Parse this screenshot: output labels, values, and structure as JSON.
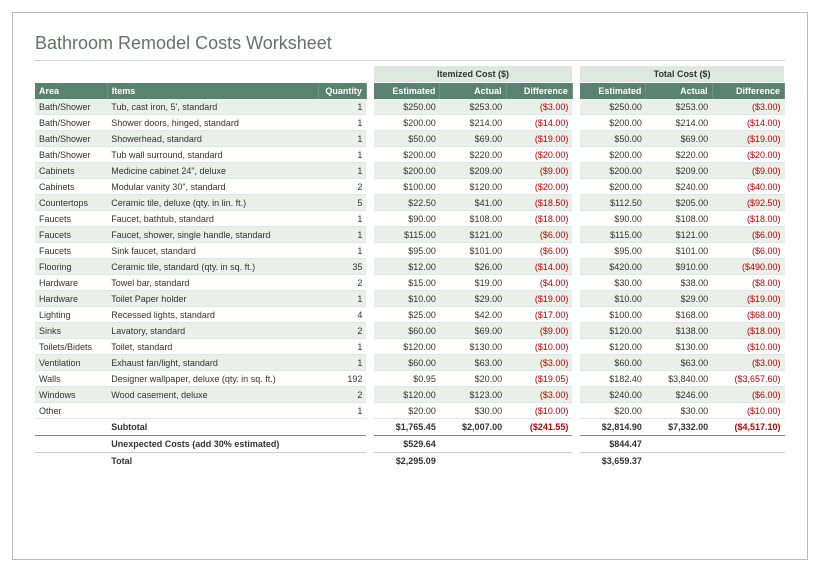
{
  "title": "Bathroom Remodel Costs Worksheet",
  "group_headers": {
    "itemized": "Itemized Cost ($)",
    "total": "Total Cost ($)"
  },
  "columns": {
    "area": "Area",
    "items": "Items",
    "qty": "Quantity",
    "est": "Estimated",
    "act": "Actual",
    "dif": "Difference"
  },
  "rows": [
    {
      "area": "Bath/Shower",
      "item": "Tub, cast iron, 5', standard",
      "qty": 1,
      "iest": "$250.00",
      "iact": "$253.00",
      "idif": "($3.00)",
      "test": "$250.00",
      "tact": "$253.00",
      "tdif": "($3.00)"
    },
    {
      "area": "Bath/Shower",
      "item": "Shower doors, hinged, standard",
      "qty": 1,
      "iest": "$200.00",
      "iact": "$214.00",
      "idif": "($14.00)",
      "test": "$200.00",
      "tact": "$214.00",
      "tdif": "($14.00)"
    },
    {
      "area": "Bath/Shower",
      "item": "Showerhead, standard",
      "qty": 1,
      "iest": "$50.00",
      "iact": "$69.00",
      "idif": "($19.00)",
      "test": "$50.00",
      "tact": "$69.00",
      "tdif": "($19.00)"
    },
    {
      "area": "Bath/Shower",
      "item": "Tub wall surround, standard",
      "qty": 1,
      "iest": "$200.00",
      "iact": "$220.00",
      "idif": "($20.00)",
      "test": "$200.00",
      "tact": "$220.00",
      "tdif": "($20.00)"
    },
    {
      "area": "Cabinets",
      "item": "Medicine cabinet 24\", deluxe",
      "qty": 1,
      "iest": "$200.00",
      "iact": "$209.00",
      "idif": "($9.00)",
      "test": "$200.00",
      "tact": "$209.00",
      "tdif": "($9.00)"
    },
    {
      "area": "Cabinets",
      "item": "Modular vanity 30\", standard",
      "qty": 2,
      "iest": "$100.00",
      "iact": "$120.00",
      "idif": "($20.00)",
      "test": "$200.00",
      "tact": "$240.00",
      "tdif": "($40.00)"
    },
    {
      "area": "Countertops",
      "item": "Ceramic tile, deluxe (qty. in lin. ft.)",
      "qty": 5,
      "iest": "$22.50",
      "iact": "$41.00",
      "idif": "($18.50)",
      "test": "$112.50",
      "tact": "$205.00",
      "tdif": "($92.50)"
    },
    {
      "area": "Faucets",
      "item": "Faucet, bathtub, standard",
      "qty": 1,
      "iest": "$90.00",
      "iact": "$108.00",
      "idif": "($18.00)",
      "test": "$90.00",
      "tact": "$108.00",
      "tdif": "($18.00)"
    },
    {
      "area": "Faucets",
      "item": "Faucet, shower, single handle, standard",
      "qty": 1,
      "iest": "$115.00",
      "iact": "$121.00",
      "idif": "($6.00)",
      "test": "$115.00",
      "tact": "$121.00",
      "tdif": "($6.00)"
    },
    {
      "area": "Faucets",
      "item": "Sink faucet, standard",
      "qty": 1,
      "iest": "$95.00",
      "iact": "$101.00",
      "idif": "($6.00)",
      "test": "$95.00",
      "tact": "$101.00",
      "tdif": "($6.00)"
    },
    {
      "area": "Flooring",
      "item": "Ceramic tile, standard (qty. in sq. ft.)",
      "qty": 35,
      "iest": "$12.00",
      "iact": "$26.00",
      "idif": "($14.00)",
      "test": "$420.00",
      "tact": "$910.00",
      "tdif": "($490.00)"
    },
    {
      "area": "Hardware",
      "item": "Towel bar, standard",
      "qty": 2,
      "iest": "$15.00",
      "iact": "$19.00",
      "idif": "($4.00)",
      "test": "$30.00",
      "tact": "$38.00",
      "tdif": "($8.00)"
    },
    {
      "area": "Hardware",
      "item": "Toilet Paper holder",
      "qty": 1,
      "iest": "$10.00",
      "iact": "$29.00",
      "idif": "($19.00)",
      "test": "$10.00",
      "tact": "$29.00",
      "tdif": "($19.00)"
    },
    {
      "area": "Lighting",
      "item": "Recessed lights, standard",
      "qty": 4,
      "iest": "$25.00",
      "iact": "$42.00",
      "idif": "($17.00)",
      "test": "$100.00",
      "tact": "$168.00",
      "tdif": "($68.00)"
    },
    {
      "area": "Sinks",
      "item": "Lavatory, standard",
      "qty": 2,
      "iest": "$60.00",
      "iact": "$69.00",
      "idif": "($9.00)",
      "test": "$120.00",
      "tact": "$138.00",
      "tdif": "($18.00)"
    },
    {
      "area": "Toilets/Bidets",
      "item": "Toilet, standard",
      "qty": 1,
      "iest": "$120.00",
      "iact": "$130.00",
      "idif": "($10.00)",
      "test": "$120.00",
      "tact": "$130.00",
      "tdif": "($10.00)"
    },
    {
      "area": "Ventilation",
      "item": "Exhaust fan/light, standard",
      "qty": 1,
      "iest": "$60.00",
      "iact": "$63.00",
      "idif": "($3.00)",
      "test": "$60.00",
      "tact": "$63.00",
      "tdif": "($3.00)"
    },
    {
      "area": "Walls",
      "item": "Designer wallpaper, deluxe (qty. in sq. ft.)",
      "qty": 192,
      "iest": "$0.95",
      "iact": "$20.00",
      "idif": "($19.05)",
      "test": "$182.40",
      "tact": "$3,840.00",
      "tdif": "($3,657.60)"
    },
    {
      "area": "Windows",
      "item": "Wood casement, deluxe",
      "qty": 2,
      "iest": "$120.00",
      "iact": "$123.00",
      "idif": "($3.00)",
      "test": "$240.00",
      "tact": "$246.00",
      "tdif": "($6.00)"
    },
    {
      "area": "Other",
      "item": "",
      "qty": 1,
      "iest": "$20.00",
      "iact": "$30.00",
      "idif": "($10.00)",
      "test": "$20.00",
      "tact": "$30.00",
      "tdif": "($10.00)"
    }
  ],
  "subtotal": {
    "label": "Subtotal",
    "iest": "$1,765.45",
    "iact": "$2,007.00",
    "idif": "($241.55)",
    "test": "$2,814.90",
    "tact": "$7,332.00",
    "tdif": "($4,517.10)"
  },
  "unexpected": {
    "label": "Unexpected Costs (add 30% estimated)",
    "iest": "$529.64",
    "test": "$844.47"
  },
  "total": {
    "label": "Total",
    "iest": "$2,295.09",
    "test": "$3,659.37"
  },
  "style": {
    "header_bg": "#5a8270",
    "header_fg": "#ffffff",
    "group_bg": "#dde8e1",
    "alt_row_bg": "#e9efe9",
    "neg_color": "#c00000",
    "title_color": "#64726b",
    "border_color": "#bbbbbb",
    "font_size_body": 9,
    "font_size_title": 18
  }
}
